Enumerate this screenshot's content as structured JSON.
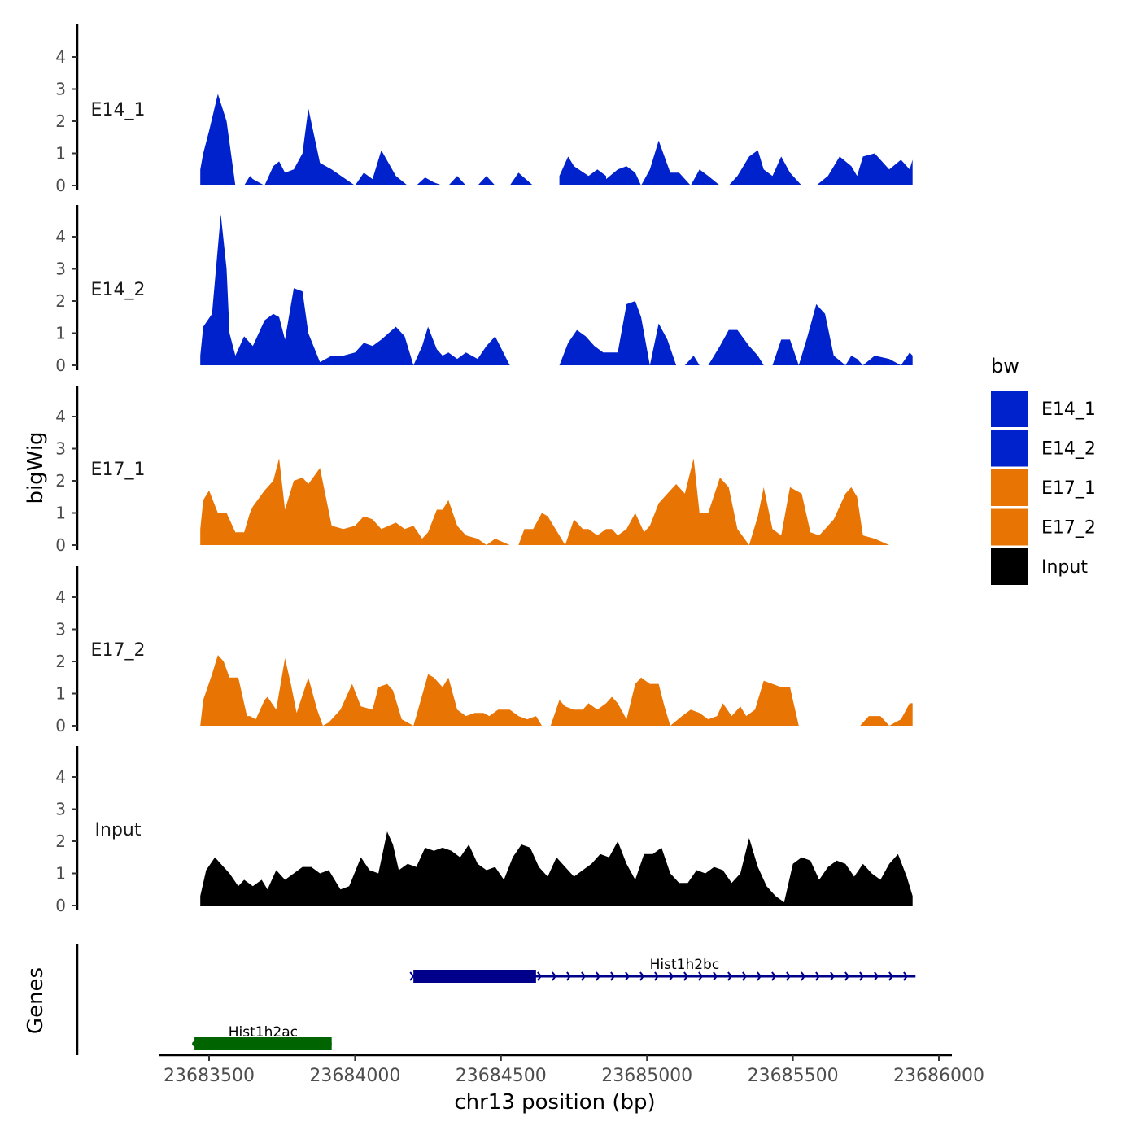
{
  "chart_data": {
    "type": "area",
    "title": "",
    "xlabel": "chr13 position (bp)",
    "ylabel": "bigWig",
    "genes_label": "Genes",
    "xlim": [
      23683330,
      23686040
    ],
    "ylim": [
      0,
      5
    ],
    "y_ticks": [
      0,
      1,
      2,
      3,
      4
    ],
    "y_tick_labels": [
      "0",
      "1",
      "2",
      "3",
      "4"
    ],
    "x_ticks": [
      23683500,
      23684000,
      23684500,
      23685000,
      23685500,
      23686000
    ],
    "x_tick_labels": [
      "23683500",
      "23684000",
      "23684500",
      "23685000",
      "23685500",
      "23686000"
    ],
    "grid": false,
    "legend": {
      "title": "bw",
      "position": "right",
      "entries": [
        {
          "label": "E14_1",
          "color": "#0022cc"
        },
        {
          "label": "E14_2",
          "color": "#0022cc"
        },
        {
          "label": "E17_1",
          "color": "#e87404"
        },
        {
          "label": "E17_2",
          "color": "#e87404"
        },
        {
          "label": "Input",
          "color": "#000000"
        }
      ]
    },
    "series": [
      {
        "name": "E14_1",
        "color": "#0022cc",
        "x": [
          23683470,
          23683480,
          23683500,
          23683530,
          23683560,
          23683590,
          23683620,
          23683640,
          23683650,
          23683690,
          23683720,
          23683740,
          23683760,
          23683790,
          23683820,
          23683840,
          23683880,
          23683920,
          23683960,
          23684000,
          23684030,
          23684060,
          23684090,
          23684140,
          23684180,
          23684210,
          23684240,
          23684270,
          23684300,
          23684320,
          23684350,
          23684380,
          23684420,
          23684450,
          23684480,
          23684530,
          23684560,
          23684610,
          23684640,
          23684670,
          23684700,
          23684700,
          23684730,
          23684750,
          23684800,
          23684830,
          23684860,
          23684860,
          23684900,
          23684930,
          23684960,
          23684980,
          23685010,
          23685040,
          23685080,
          23685110,
          23685150,
          23685180,
          23685210,
          23685250,
          23685280,
          23685310,
          23685350,
          23685380,
          23685400,
          23685430,
          23685460,
          23685490,
          23685530,
          23685530,
          23685580,
          23685620,
          23685660,
          23685700,
          23685720,
          23685740,
          23685780,
          23685830,
          23685870,
          23685900,
          23685910
        ],
        "values": [
          0.5,
          1.0,
          1.7,
          2.85,
          2.0,
          0,
          0,
          0.3,
          0.2,
          0,
          0.6,
          0.75,
          0.4,
          0.5,
          1.0,
          2.4,
          0.7,
          0.5,
          0.25,
          0,
          0.4,
          0.2,
          1.1,
          0.3,
          0,
          0,
          0.25,
          0.1,
          0,
          0,
          0.3,
          0,
          0,
          0.3,
          0,
          0,
          0.4,
          0,
          0,
          0,
          0,
          0.3,
          0.9,
          0.6,
          0.3,
          0.5,
          0.3,
          0.2,
          0.5,
          0.6,
          0.4,
          0,
          0.5,
          1.4,
          0.4,
          0.4,
          0,
          0.5,
          0.3,
          0,
          0,
          0.3,
          0.9,
          1.1,
          0.5,
          0.3,
          0.9,
          0.4,
          0,
          0,
          0,
          0.3,
          0.9,
          0.6,
          0.3,
          0.9,
          1.0,
          0.5,
          0.8,
          0.5,
          0.8
        ]
      },
      {
        "name": "E14_2",
        "color": "#0022cc",
        "x": [
          23683470,
          23683480,
          23683510,
          23683540,
          23683560,
          23683570,
          23683590,
          23683620,
          23683640,
          23683650,
          23683690,
          23683720,
          23683740,
          23683760,
          23683790,
          23683820,
          23683840,
          23683880,
          23683920,
          23683960,
          23684000,
          23684030,
          23684060,
          23684090,
          23684140,
          23684170,
          23684200,
          23684230,
          23684250,
          23684280,
          23684300,
          23684320,
          23684350,
          23684380,
          23684420,
          23684450,
          23684480,
          23684530,
          23684580,
          23684600,
          23684640,
          23684700,
          23684730,
          23684760,
          23684790,
          23684820,
          23684850,
          23684880,
          23684900,
          23684930,
          23684960,
          23684980,
          23685010,
          23685040,
          23685070,
          23685100,
          23685130,
          23685160,
          23685180,
          23685210,
          23685250,
          23685280,
          23685310,
          23685350,
          23685380,
          23685400,
          23685430,
          23685460,
          23685490,
          23685520,
          23685550,
          23685580,
          23685610,
          23685640,
          23685680,
          23685700,
          23685720,
          23685740,
          23685780,
          23685830,
          23685870,
          23685900,
          23685910
        ],
        "values": [
          0.3,
          1.2,
          1.6,
          4.7,
          3.0,
          1.0,
          0.3,
          0.9,
          0.7,
          0.6,
          1.4,
          1.6,
          1.5,
          0.8,
          2.4,
          2.3,
          1.0,
          0.1,
          0.3,
          0.3,
          0.4,
          0.7,
          0.6,
          0.8,
          1.2,
          0.9,
          0,
          0.6,
          1.2,
          0.5,
          0.3,
          0.4,
          0.2,
          0.4,
          0.2,
          0.6,
          0.9,
          0,
          0,
          0,
          0,
          0,
          0.7,
          1.1,
          0.9,
          0.6,
          0.4,
          0.4,
          0.4,
          1.9,
          2.0,
          1.5,
          0,
          1.3,
          0.8,
          0,
          0,
          0.3,
          0,
          0,
          0.6,
          1.1,
          1.1,
          0.6,
          0.3,
          0,
          0,
          0.8,
          0.8,
          0,
          0.9,
          1.9,
          1.6,
          0.3,
          0,
          0.3,
          0.2,
          0,
          0.3,
          0.2,
          0,
          0.4,
          0.3
        ]
      },
      {
        "name": "E17_1",
        "color": "#e87404",
        "x": [
          23683470,
          23683480,
          23683500,
          23683530,
          23683560,
          23683590,
          23683620,
          23683640,
          23683650,
          23683690,
          23683720,
          23683740,
          23683760,
          23683790,
          23683820,
          23683840,
          23683880,
          23683920,
          23683960,
          23684000,
          23684030,
          23684060,
          23684090,
          23684140,
          23684170,
          23684200,
          23684230,
          23684250,
          23684280,
          23684300,
          23684320,
          23684350,
          23684380,
          23684420,
          23684450,
          23684480,
          23684530,
          23684560,
          23684580,
          23684610,
          23684640,
          23684660,
          23684700,
          23684720,
          23684750,
          23684780,
          23684800,
          23684830,
          23684860,
          23684880,
          23684900,
          23684930,
          23684960,
          23684990,
          23685010,
          23685040,
          23685060,
          23685100,
          23685130,
          23685160,
          23685180,
          23685210,
          23685250,
          23685280,
          23685310,
          23685350,
          23685380,
          23685400,
          23685430,
          23685460,
          23685490,
          23685530,
          23685560,
          23685590,
          23685610,
          23685640,
          23685680,
          23685700,
          23685720,
          23685740,
          23685780,
          23685830,
          23685870,
          23685890,
          23685910
        ],
        "values": [
          0.5,
          1.4,
          1.7,
          1.0,
          1.0,
          0.4,
          0.4,
          1.0,
          1.2,
          1.7,
          2.0,
          2.7,
          1.1,
          2.0,
          2.1,
          1.9,
          2.4,
          0.6,
          0.5,
          0.6,
          0.9,
          0.8,
          0.5,
          0.7,
          0.5,
          0.6,
          0.2,
          0.4,
          1.1,
          1.1,
          1.4,
          0.6,
          0.3,
          0.2,
          0,
          0.2,
          0,
          0,
          0.5,
          0.5,
          1.0,
          0.9,
          0.3,
          0,
          0.8,
          0.5,
          0.5,
          0.3,
          0.5,
          0.5,
          0.3,
          0.5,
          1.0,
          0.4,
          0.6,
          1.3,
          1.5,
          1.9,
          1.6,
          2.7,
          1.0,
          1.0,
          2.1,
          1.8,
          0.5,
          0,
          0.9,
          1.8,
          0.5,
          0.3,
          1.8,
          1.6,
          0.4,
          0.3,
          0.5,
          0.8,
          1.6,
          1.8,
          1.5,
          0.3,
          0.2,
          0,
          0,
          0,
          0
        ]
      },
      {
        "name": "E17_2",
        "color": "#e87404",
        "x": [
          23683470,
          23683480,
          23683510,
          23683530,
          23683550,
          23683570,
          23683600,
          23683630,
          23683640,
          23683660,
          23683690,
          23683700,
          23683730,
          23683760,
          23683780,
          23683800,
          23683840,
          23683870,
          23683890,
          23683910,
          23683950,
          23683990,
          23684020,
          23684060,
          23684080,
          23684110,
          23684130,
          23684160,
          23684200,
          23684210,
          23684250,
          23684270,
          23684300,
          23684320,
          23684350,
          23684380,
          23684410,
          23684440,
          23684460,
          23684490,
          23684530,
          23684560,
          23684590,
          23684620,
          23684640,
          23684670,
          23684700,
          23684720,
          23684750,
          23684780,
          23684800,
          23684830,
          23684860,
          23684880,
          23684900,
          23684930,
          23684960,
          23684980,
          23685010,
          23685040,
          23685060,
          23685080,
          23685120,
          23685150,
          23685180,
          23685210,
          23685240,
          23685260,
          23685290,
          23685320,
          23685340,
          23685370,
          23685400,
          23685430,
          23685460,
          23685490,
          23685520,
          23685550,
          23685560,
          23685690,
          23685730,
          23685760,
          23685800,
          23685830,
          23685870,
          23685900,
          23685910
        ],
        "values": [
          0,
          0.8,
          1.6,
          2.2,
          2.0,
          1.5,
          1.5,
          0.3,
          0.3,
          0.2,
          0.8,
          0.9,
          0.5,
          2.1,
          1.3,
          0.4,
          1.5,
          0.5,
          0,
          0.1,
          0.5,
          1.3,
          0.6,
          0.5,
          1.2,
          1.3,
          1.1,
          0.2,
          0,
          0.3,
          1.6,
          1.5,
          1.2,
          1.5,
          0.5,
          0.3,
          0.4,
          0.4,
          0.3,
          0.5,
          0.5,
          0.3,
          0.2,
          0.3,
          0,
          0,
          0.8,
          0.6,
          0.5,
          0.5,
          0.7,
          0.5,
          0.7,
          0.9,
          0.7,
          0.2,
          1.3,
          1.5,
          1.3,
          1.3,
          0.6,
          0,
          0.3,
          0.5,
          0.4,
          0.2,
          0.3,
          0.7,
          0.3,
          0.6,
          0.3,
          0.5,
          1.4,
          1.3,
          1.2,
          1.2,
          0,
          0,
          0,
          0,
          0,
          0.3,
          0.3,
          0,
          0.2,
          0.7,
          0.7
        ]
      },
      {
        "name": "Input",
        "color": "#000000",
        "x": [
          23683470,
          23683490,
          23683520,
          23683540,
          23683570,
          23683600,
          23683620,
          23683650,
          23683680,
          23683700,
          23683730,
          23683760,
          23683790,
          23683820,
          23683850,
          23683880,
          23683910,
          23683950,
          23683980,
          23684020,
          23684050,
          23684080,
          23684110,
          23684130,
          23684150,
          23684180,
          23684210,
          23684240,
          23684270,
          23684300,
          23684330,
          23684360,
          23684390,
          23684420,
          23684450,
          23684480,
          23684510,
          23684540,
          23684570,
          23684600,
          23684630,
          23684660,
          23684690,
          23684720,
          23684750,
          23684780,
          23684810,
          23684840,
          23684870,
          23684900,
          23684930,
          23684960,
          23684990,
          23685020,
          23685050,
          23685080,
          23685110,
          23685140,
          23685170,
          23685200,
          23685230,
          23685260,
          23685290,
          23685320,
          23685350,
          23685380,
          23685410,
          23685440,
          23685470,
          23685500,
          23685530,
          23685560,
          23685590,
          23685620,
          23685650,
          23685680,
          23685710,
          23685740,
          23685770,
          23685800,
          23685830,
          23685860,
          23685890,
          23685910
        ],
        "values": [
          0.3,
          1.1,
          1.5,
          1.3,
          1.0,
          0.6,
          0.8,
          0.6,
          0.8,
          0.5,
          1.1,
          0.8,
          1.0,
          1.2,
          1.2,
          1.0,
          1.1,
          0.5,
          0.6,
          1.5,
          1.1,
          1.0,
          2.3,
          1.9,
          1.1,
          1.3,
          1.2,
          1.8,
          1.7,
          1.8,
          1.7,
          1.5,
          1.9,
          1.3,
          1.1,
          1.2,
          0.8,
          1.5,
          1.9,
          1.8,
          1.2,
          0.9,
          1.5,
          1.2,
          0.9,
          1.1,
          1.3,
          1.6,
          1.5,
          2.0,
          1.3,
          0.8,
          1.6,
          1.6,
          1.8,
          1.0,
          0.7,
          0.7,
          1.1,
          1.0,
          1.2,
          1.1,
          0.7,
          1.0,
          2.1,
          1.2,
          0.6,
          0.3,
          0.1,
          1.3,
          1.5,
          1.4,
          0.8,
          1.2,
          1.4,
          1.3,
          0.9,
          1.3,
          1.0,
          0.8,
          1.3,
          1.6,
          0.9,
          0.3
        ]
      }
    ],
    "genes": [
      {
        "name": "Hist1h2ac",
        "color": "#006400",
        "start": 23683450,
        "end": 23683920,
        "strand": "-",
        "thick_start": 23683450,
        "thick_end": 23683920,
        "row": 2
      },
      {
        "name": "Hist1h2bc",
        "color": "#00008b",
        "start": 23684200,
        "end": 23685920,
        "strand": "+",
        "thick_start": 23684200,
        "thick_end": 23684620,
        "row": 1
      }
    ]
  }
}
